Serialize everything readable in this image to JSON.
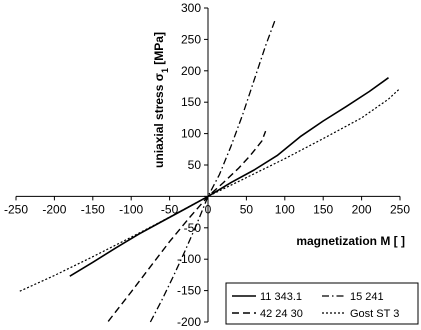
{
  "chart_data": {
    "type": "line",
    "xlabel": "magnetization M [ ]",
    "ylabel_main": "uniaxial stress σ",
    "ylabel_sub": "1",
    "ylabel_unit": " [MPa]",
    "xlim": [
      -250,
      250
    ],
    "ylim": [
      -200,
      300
    ],
    "x_ticks": [
      -250,
      -200,
      -150,
      -100,
      -50,
      0,
      50,
      100,
      150,
      200,
      250
    ],
    "y_ticks": [
      -200,
      -150,
      -100,
      -50,
      0,
      50,
      100,
      150,
      200,
      250,
      300
    ],
    "grid": false,
    "legend_position": "bottom-right",
    "series": [
      {
        "name": "11 343.1",
        "dash": "solid",
        "points": [
          [
            -180,
            -127
          ],
          [
            -150,
            -105
          ],
          [
            -120,
            -82
          ],
          [
            -90,
            -60
          ],
          [
            -60,
            -40
          ],
          [
            -30,
            -20
          ],
          [
            0,
            0
          ],
          [
            30,
            22
          ],
          [
            60,
            42
          ],
          [
            90,
            65
          ],
          [
            120,
            95
          ],
          [
            150,
            120
          ],
          [
            180,
            143
          ],
          [
            210,
            167
          ],
          [
            235,
            189
          ]
        ]
      },
      {
        "name": "15 241",
        "dash": "dashdot",
        "points": [
          [
            -75,
            -200
          ],
          [
            -60,
            -165
          ],
          [
            -45,
            -127
          ],
          [
            -30,
            -87
          ],
          [
            -15,
            -45
          ],
          [
            0,
            0
          ],
          [
            15,
            35
          ],
          [
            30,
            80
          ],
          [
            45,
            130
          ],
          [
            60,
            185
          ],
          [
            75,
            240
          ],
          [
            88,
            283
          ]
        ]
      },
      {
        "name": "42 24 30",
        "dash": "dash",
        "points": [
          [
            -130,
            -199
          ],
          [
            -100,
            -152
          ],
          [
            -75,
            -112
          ],
          [
            -50,
            -72
          ],
          [
            -25,
            -35
          ],
          [
            0,
            0
          ],
          [
            20,
            22
          ],
          [
            40,
            45
          ],
          [
            55,
            65
          ],
          [
            70,
            88
          ],
          [
            75,
            104
          ]
        ]
      },
      {
        "name": "Gost ST 3",
        "dash": "dot",
        "points": [
          [
            -245,
            -151
          ],
          [
            -200,
            -126
          ],
          [
            -150,
            -96
          ],
          [
            -100,
            -65
          ],
          [
            -50,
            -33
          ],
          [
            0,
            0
          ],
          [
            50,
            30
          ],
          [
            100,
            60
          ],
          [
            150,
            92
          ],
          [
            200,
            125
          ],
          [
            235,
            155
          ],
          [
            250,
            172
          ]
        ]
      }
    ]
  }
}
